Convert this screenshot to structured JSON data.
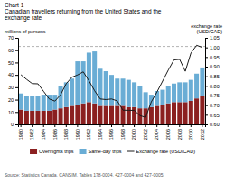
{
  "chart_data": {
    "type": "bar",
    "title": "Chart 1",
    "subtitle": [
      "Canadian travellers returning from the United States and the",
      "exchange rate"
    ],
    "ylabel": "millions of persons",
    "y2label": [
      "exchange rate",
      "(USD/CAD)"
    ],
    "source": "Source: Statistics Canada, CANSIM, Tables 178-0004, 427-0004 and 427-0005.",
    "stacked": true,
    "categories": [
      "1980",
      null,
      "1982",
      null,
      "1984",
      null,
      "1986",
      null,
      "1988",
      null,
      "1990",
      null,
      "1992",
      null,
      "1994",
      null,
      "1996",
      null,
      "1998",
      null,
      "2000",
      null,
      "2002",
      null,
      "2004",
      null,
      "2006",
      null,
      "2008",
      null,
      "2010",
      null,
      "2012"
    ],
    "series": [
      {
        "name": "Overnights trips",
        "type": "bar",
        "color": "#8B2020",
        "values": [
          12,
          11,
          11,
          11,
          11,
          11,
          12,
          13,
          14,
          15,
          16,
          17,
          18,
          17,
          15,
          15,
          15,
          15,
          15,
          14,
          14,
          13,
          13,
          14,
          15,
          16,
          17,
          18,
          18,
          18,
          19,
          21,
          23
        ]
      },
      {
        "name": "Same-day trips",
        "type": "bar",
        "color": "#6aadd5",
        "values": [
          13,
          12,
          12,
          12,
          13,
          13,
          12,
          18,
          20,
          22,
          35,
          34,
          40,
          42,
          30,
          28,
          25,
          22,
          22,
          22,
          20,
          18,
          13,
          10,
          12,
          12,
          14,
          15,
          16,
          16,
          17,
          20,
          23
        ]
      },
      {
        "name": "Exchange rate (USD/CAD)",
        "type": "line",
        "axis": "y2",
        "color": "#1a1a1a",
        "line_style": "solid",
        "values": [
          0.858,
          0.834,
          0.812,
          0.811,
          0.772,
          0.732,
          0.721,
          0.754,
          0.812,
          0.845,
          0.857,
          0.873,
          0.827,
          0.775,
          0.732,
          0.729,
          0.732,
          0.722,
          0.674,
          0.673,
          0.673,
          0.646,
          0.636,
          0.717,
          0.768,
          0.825,
          0.882,
          0.935,
          0.938,
          0.876,
          0.971,
          1.011,
          1.0
        ]
      }
    ],
    "reference_line_y": 63,
    "ylim": [
      0,
      70
    ],
    "yticks": [
      0,
      10,
      20,
      30,
      40,
      50,
      60,
      70
    ],
    "y2lim": [
      0.6,
      1.05
    ],
    "y2ticks": [
      {
        "value": 0.6,
        "label": "0.60"
      },
      0.65,
      {
        "value": 0.7,
        "label": "0.70"
      },
      0.75,
      {
        "value": 0.8,
        "label": "0.80"
      },
      0.85,
      {
        "value": 0.9,
        "label": "0.90"
      },
      0.95,
      {
        "value": 1.0,
        "label": "1.00"
      },
      1.05
    ],
    "legend": "bottom"
  }
}
